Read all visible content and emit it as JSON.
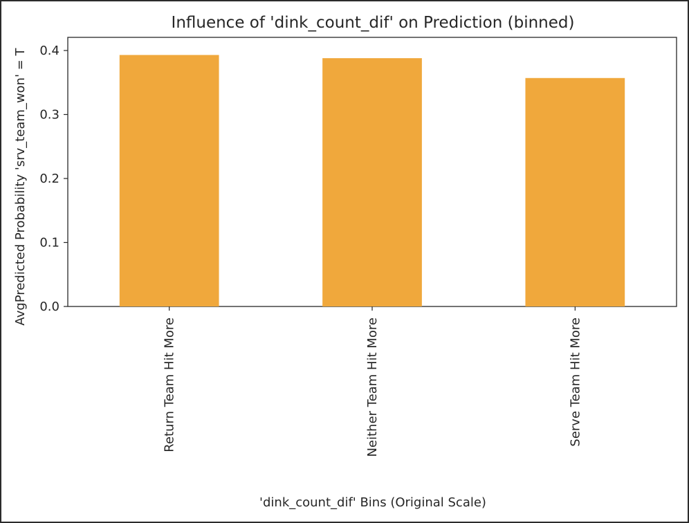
{
  "chart_data": {
    "type": "bar",
    "title": "Influence of 'dink_count_dif' on Prediction (binned)",
    "xlabel": "'dink_count_dif' Bins (Original Scale)",
    "ylabel": "AvgPredicted Probability 'srv_team_won' = T",
    "categories": [
      "Return Team Hit More",
      "Neither Team Hit More",
      "Serve Team Hit More"
    ],
    "values": [
      0.393,
      0.388,
      0.357
    ],
    "ylim": [
      0,
      0.4
    ],
    "yticks": [
      0.0,
      0.1,
      0.2,
      0.3,
      0.4
    ],
    "ytick_labels": [
      "0.0",
      "0.1",
      "0.2",
      "0.3",
      "0.4"
    ],
    "grid": false,
    "bar_color": "#f0a83c"
  }
}
